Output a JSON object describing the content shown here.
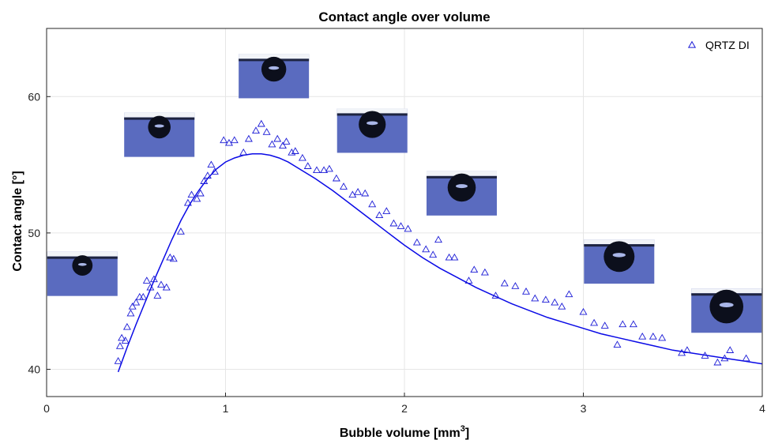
{
  "chart_data": {
    "type": "scatter",
    "title": "Contact angle over volume",
    "xlabel": "Bubble volume [mm",
    "xlabel_sup": "3",
    "xlabel_end": "]",
    "ylabel": "Contact angle [°]",
    "xlim": [
      0,
      4
    ],
    "ylim": [
      38,
      65
    ],
    "xticks": [
      0,
      1,
      2,
      3,
      4
    ],
    "yticks": [
      40,
      50,
      60
    ],
    "grid": true,
    "legend_position": "top-right",
    "colors": {
      "series": "#1a1ad6",
      "fit": "#0a0ae6",
      "grid": "#e6e6e6",
      "photo_bg": "#5a6bbf",
      "photo_top": "#f2f4f8"
    },
    "series": [
      {
        "name": "QRTZ DI",
        "marker": "triangle-open",
        "x": [
          0.4,
          0.41,
          0.42,
          0.44,
          0.45,
          0.47,
          0.48,
          0.5,
          0.52,
          0.54,
          0.56,
          0.58,
          0.6,
          0.62,
          0.64,
          0.67,
          0.69,
          0.71,
          0.75,
          0.79,
          0.81,
          0.84,
          0.86,
          0.88,
          0.9,
          0.92,
          0.94,
          0.99,
          1.02,
          1.05,
          1.1,
          1.13,
          1.17,
          1.2,
          1.23,
          1.26,
          1.29,
          1.32,
          1.34,
          1.37,
          1.39,
          1.43,
          1.46,
          1.51,
          1.55,
          1.58,
          1.62,
          1.66,
          1.71,
          1.74,
          1.78,
          1.82,
          1.86,
          1.9,
          1.94,
          1.98,
          2.02,
          2.07,
          2.12,
          2.16,
          2.19,
          2.25,
          2.28,
          2.36,
          2.39,
          2.45,
          2.51,
          2.56,
          2.62,
          2.68,
          2.73,
          2.79,
          2.84,
          2.88,
          2.92,
          3.0,
          3.06,
          3.12,
          3.19,
          3.22,
          3.28,
          3.33,
          3.39,
          3.44,
          3.55,
          3.58,
          3.68,
          3.75,
          3.79,
          3.82,
          3.91
        ],
        "y": [
          40.6,
          41.7,
          42.3,
          42.1,
          43.1,
          44.1,
          44.6,
          44.9,
          45.3,
          45.3,
          46.5,
          46.0,
          46.6,
          45.4,
          46.2,
          46.0,
          48.2,
          48.1,
          50.1,
          52.2,
          52.8,
          52.5,
          52.9,
          53.8,
          54.2,
          55.0,
          54.5,
          56.8,
          56.6,
          56.8,
          55.9,
          56.9,
          57.5,
          58.0,
          57.4,
          56.5,
          56.9,
          56.4,
          56.7,
          55.9,
          56.0,
          55.5,
          54.9,
          54.6,
          54.6,
          54.7,
          54.0,
          53.4,
          52.8,
          53.0,
          52.9,
          52.1,
          51.3,
          51.6,
          50.7,
          50.5,
          50.3,
          49.3,
          48.8,
          48.4,
          49.5,
          48.2,
          48.2,
          46.5,
          47.3,
          47.1,
          45.4,
          46.3,
          46.1,
          45.7,
          45.2,
          45.1,
          44.9,
          44.6,
          45.5,
          44.2,
          43.4,
          43.2,
          41.8,
          43.3,
          43.3,
          42.4,
          42.4,
          42.3,
          41.2,
          41.4,
          41.0,
          40.5,
          40.8,
          41.4,
          40.8
        ]
      }
    ],
    "fit_curve": {
      "x": [
        0.4,
        0.45,
        0.5,
        0.55,
        0.6,
        0.65,
        0.7,
        0.75,
        0.8,
        0.85,
        0.9,
        0.95,
        1.0,
        1.05,
        1.1,
        1.15,
        1.2,
        1.25,
        1.3,
        1.35,
        1.4,
        1.5,
        1.6,
        1.7,
        1.8,
        1.9,
        2.0,
        2.1,
        2.2,
        2.3,
        2.4,
        2.5,
        2.6,
        2.7,
        2.8,
        2.9,
        3.0,
        3.1,
        3.2,
        3.3,
        3.4,
        3.5,
        3.6,
        3.7,
        3.8,
        3.9,
        4.0
      ],
      "y": [
        39.8,
        41.6,
        43.3,
        44.9,
        46.5,
        48.0,
        49.5,
        50.9,
        52.1,
        53.1,
        54.0,
        54.7,
        55.2,
        55.5,
        55.7,
        55.8,
        55.8,
        55.7,
        55.5,
        55.2,
        54.8,
        54.0,
        53.1,
        52.1,
        51.1,
        50.1,
        49.1,
        48.2,
        47.4,
        46.7,
        46.0,
        45.4,
        44.8,
        44.3,
        43.8,
        43.4,
        43.0,
        42.6,
        42.3,
        42.0,
        41.7,
        41.4,
        41.2,
        41.0,
        40.8,
        40.6,
        40.4
      ]
    },
    "droplet_images": [
      {
        "x": 0.2,
        "y": 47.0,
        "drop": 0.35
      },
      {
        "x": 0.63,
        "y": 57.2,
        "drop": 0.45
      },
      {
        "x": 1.27,
        "y": 61.5,
        "drop": 0.55
      },
      {
        "x": 1.82,
        "y": 57.5,
        "drop": 0.65
      },
      {
        "x": 2.32,
        "y": 52.9,
        "drop": 0.7
      },
      {
        "x": 3.2,
        "y": 47.9,
        "drop": 0.82
      },
      {
        "x": 3.8,
        "y": 44.3,
        "drop": 0.95
      }
    ]
  }
}
